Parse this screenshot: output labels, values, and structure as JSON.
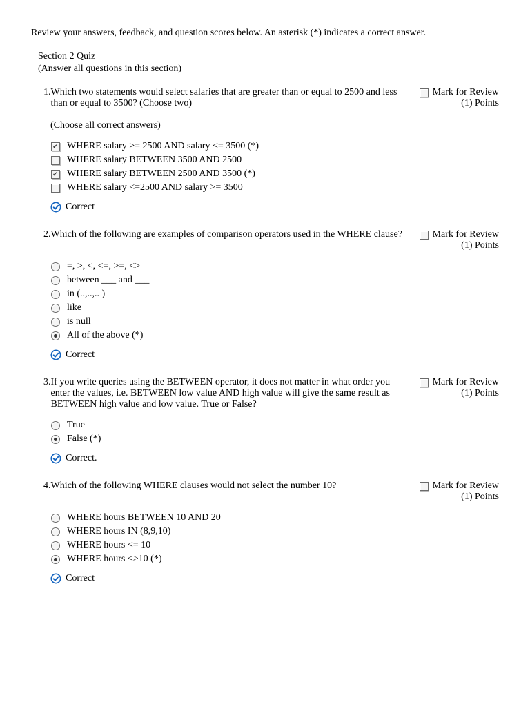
{
  "instructions": "Review your answers, feedback, and question scores below. An asterisk (*) indicates a correct answer.",
  "section": {
    "title": "Section 2 Quiz",
    "subtitle": "(Answer all questions in this section)"
  },
  "mark_label": "Mark for Review",
  "points_label": "(1) Points",
  "check_color": "#1565c0",
  "questions": [
    {
      "num": "1.",
      "text": "Which two statements would select salaries that are greater than or equal to 2500 and less than or equal to 3500? (Choose two)",
      "sub": "(Choose all correct answers)",
      "type": "checkbox",
      "options": [
        {
          "label": "WHERE salary >= 2500 AND salary <= 3500 (*)",
          "checked": true
        },
        {
          "label": "WHERE salary BETWEEN 3500 AND 2500",
          "checked": false
        },
        {
          "label": "WHERE salary BETWEEN 2500 AND 3500 (*)",
          "checked": true
        },
        {
          "label": "WHERE salary <=2500 AND salary >= 3500",
          "checked": false
        }
      ],
      "feedback": "Correct"
    },
    {
      "num": "2.",
      "text": "Which of the following are examples of comparison operators used in the WHERE clause?",
      "sub": "",
      "type": "radio",
      "options": [
        {
          "label": "=, >, <, <=, >=, <>",
          "checked": false
        },
        {
          "label": "between ___ and ___",
          "checked": false
        },
        {
          "label": "in (..,..,.. )",
          "checked": false
        },
        {
          "label": "like",
          "checked": false
        },
        {
          "label": "is null",
          "checked": false
        },
        {
          "label": "All of the above (*)",
          "checked": true
        }
      ],
      "feedback": "Correct"
    },
    {
      "num": "3.",
      "text": "If you write queries using the BETWEEN operator, it does not matter in what order you enter the values, i.e. BETWEEN low value AND high value will give the same result as BETWEEN high value and low value. True or False?",
      "sub": "",
      "type": "radio",
      "options": [
        {
          "label": "True",
          "checked": false
        },
        {
          "label": "False (*)",
          "checked": true
        }
      ],
      "feedback": "Correct."
    },
    {
      "num": "4.",
      "text": "Which of the following WHERE clauses would not select the number 10?",
      "sub": "",
      "type": "radio",
      "options": [
        {
          "label": "WHERE hours BETWEEN 10 AND 20",
          "checked": false
        },
        {
          "label": "WHERE hours IN (8,9,10)",
          "checked": false
        },
        {
          "label": "WHERE hours <= 10",
          "checked": false
        },
        {
          "label": "WHERE hours <>10 (*)",
          "checked": true
        }
      ],
      "feedback": "Correct"
    }
  ]
}
